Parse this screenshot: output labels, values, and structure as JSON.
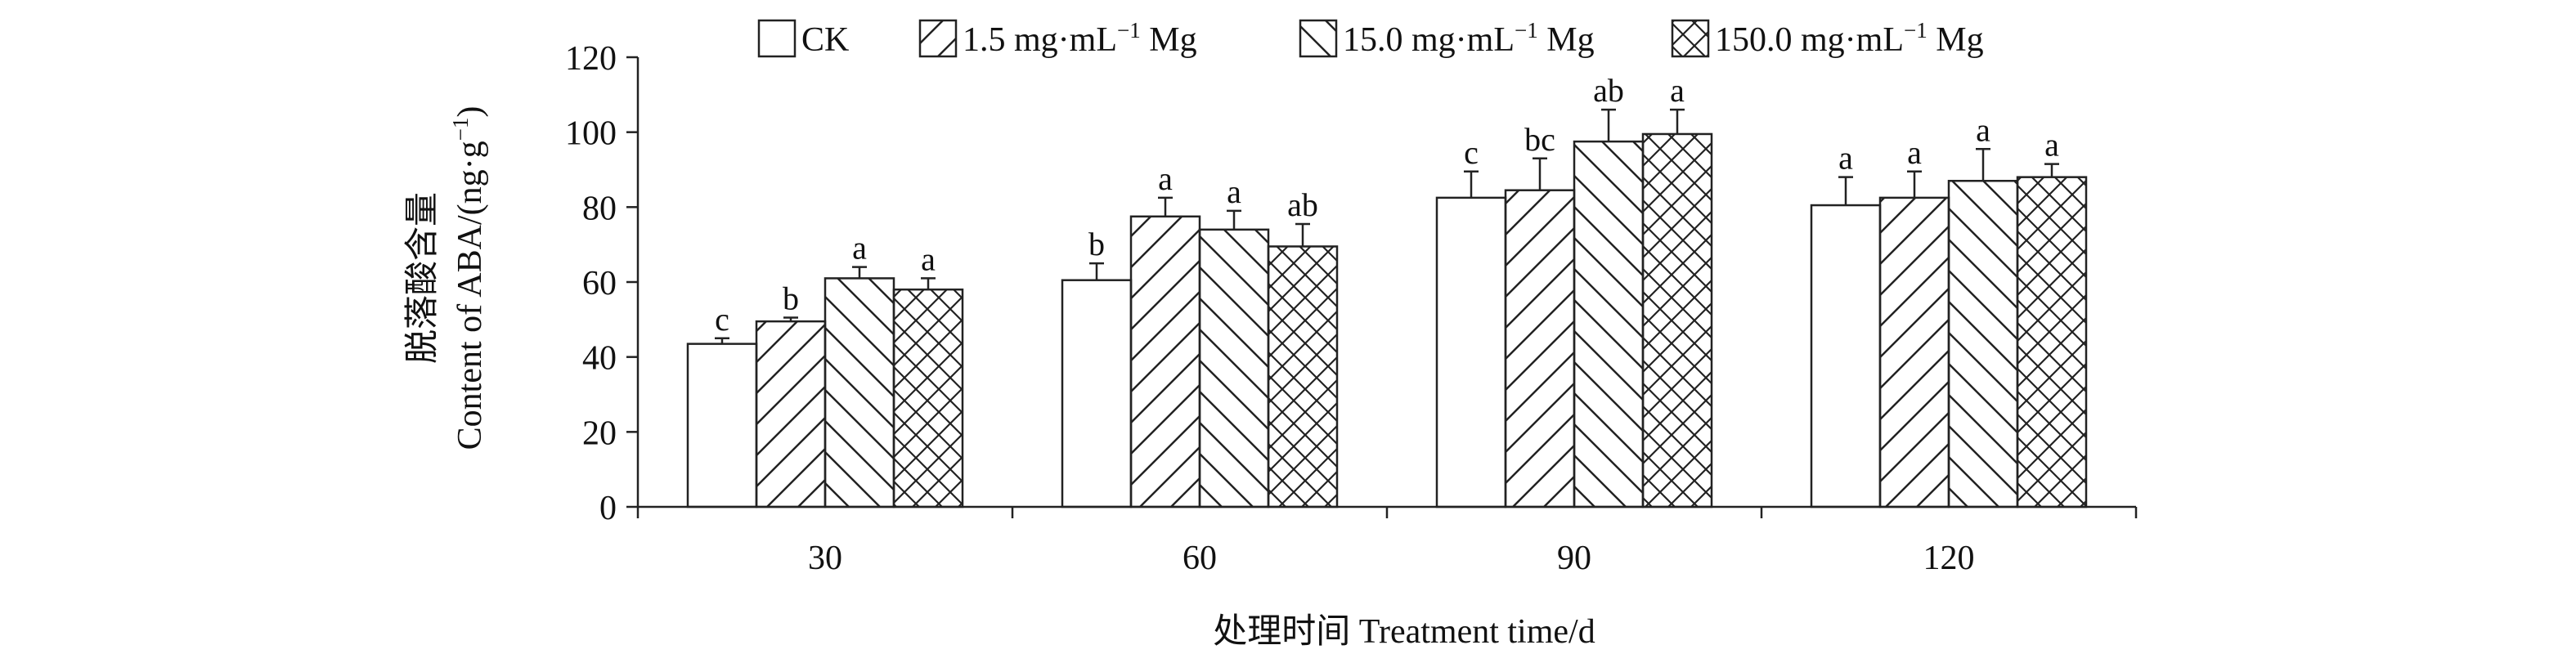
{
  "chart_data": {
    "type": "bar",
    "ylabel_cn": "脱落酸含量",
    "ylabel_en_prefix": "Content of ABA/(ng·g",
    "ylabel_en_sup": "−1",
    "ylabel_en_suffix": ")",
    "xlabel": "处理时间 Treatment time/d",
    "ylim": [
      0,
      120
    ],
    "yticks": [
      0,
      20,
      40,
      60,
      80,
      100,
      120
    ],
    "categories": [
      "30",
      "60",
      "90",
      "120"
    ],
    "series": [
      {
        "name": "CK",
        "legend_parts": [
          "CK"
        ],
        "pattern": "none",
        "values": [
          43.5,
          60.5,
          82.5,
          80.5
        ],
        "errors": [
          1.5,
          4.5,
          7,
          7.5
        ],
        "letters": [
          "c",
          "b",
          "c",
          "a"
        ]
      },
      {
        "name": "1.5 mg·mL−1 Mg",
        "legend_parts": [
          "1.5 mg·mL",
          "−1",
          " Mg"
        ],
        "pattern": "diag-up",
        "values": [
          49.5,
          77.5,
          84.5,
          82.5
        ],
        "errors": [
          1,
          5,
          8.5,
          7
        ],
        "letters": [
          "b",
          "a",
          "bc",
          "a"
        ]
      },
      {
        "name": "15.0 mg·mL−1 Mg",
        "legend_parts": [
          "15.0 mg·mL",
          "−1",
          " Mg"
        ],
        "pattern": "diag-down",
        "values": [
          61,
          74,
          97.5,
          87
        ],
        "errors": [
          3,
          5,
          8.5,
          8.5
        ],
        "letters": [
          "a",
          "a",
          "ab",
          "a"
        ]
      },
      {
        "name": "150.0 mg·mL−1 Mg",
        "legend_parts": [
          "150.0 mg·mL",
          "−1",
          " Mg"
        ],
        "pattern": "cross",
        "values": [
          58,
          69.5,
          99.5,
          88
        ],
        "errors": [
          3,
          6,
          6.5,
          3.5
        ],
        "letters": [
          "a",
          "ab",
          "a",
          "a"
        ]
      }
    ]
  }
}
